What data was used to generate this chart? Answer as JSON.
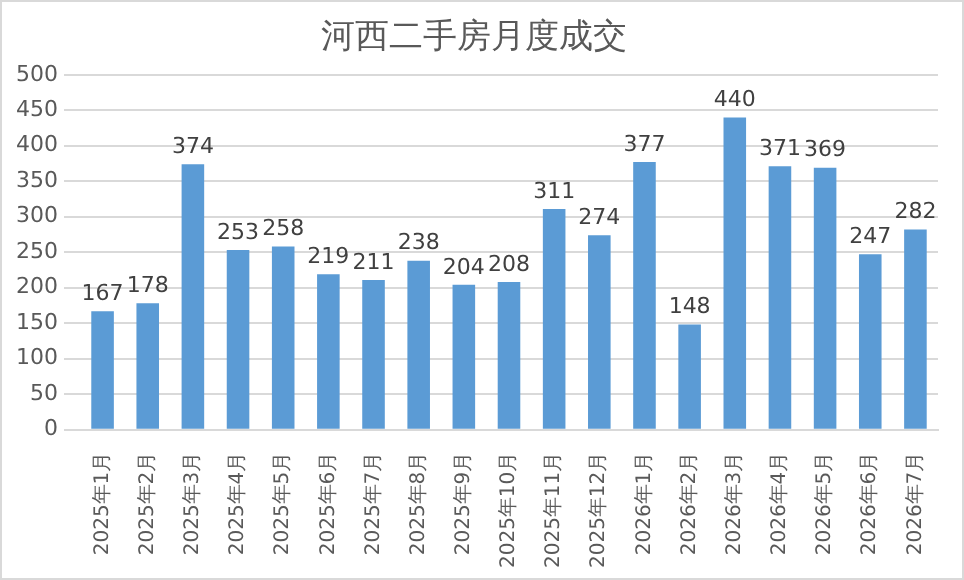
{
  "chart_data": {
    "type": "bar",
    "title": "河西二手房月度成交",
    "categories": [
      "2025年1月",
      "2025年2月",
      "2025年3月",
      "2025年4月",
      "2025年5月",
      "2025年6月",
      "2025年7月",
      "2025年8月",
      "2025年9月",
      "2025年10月",
      "2025年11月",
      "2025年12月",
      "2026年1月",
      "2026年2月",
      "2026年3月",
      "2026年4月",
      "2026年5月",
      "2026年6月",
      "2026年7月"
    ],
    "values": [
      167,
      178,
      374,
      253,
      258,
      219,
      211,
      238,
      204,
      208,
      311,
      274,
      377,
      148,
      440,
      371,
      369,
      247,
      282
    ],
    "color": "#5b9bd5",
    "ylim": [
      0,
      500
    ],
    "yticks": [
      0,
      50,
      100,
      150,
      200,
      250,
      300,
      350,
      400,
      450,
      500
    ],
    "grid": "y",
    "data_labels": true
  }
}
